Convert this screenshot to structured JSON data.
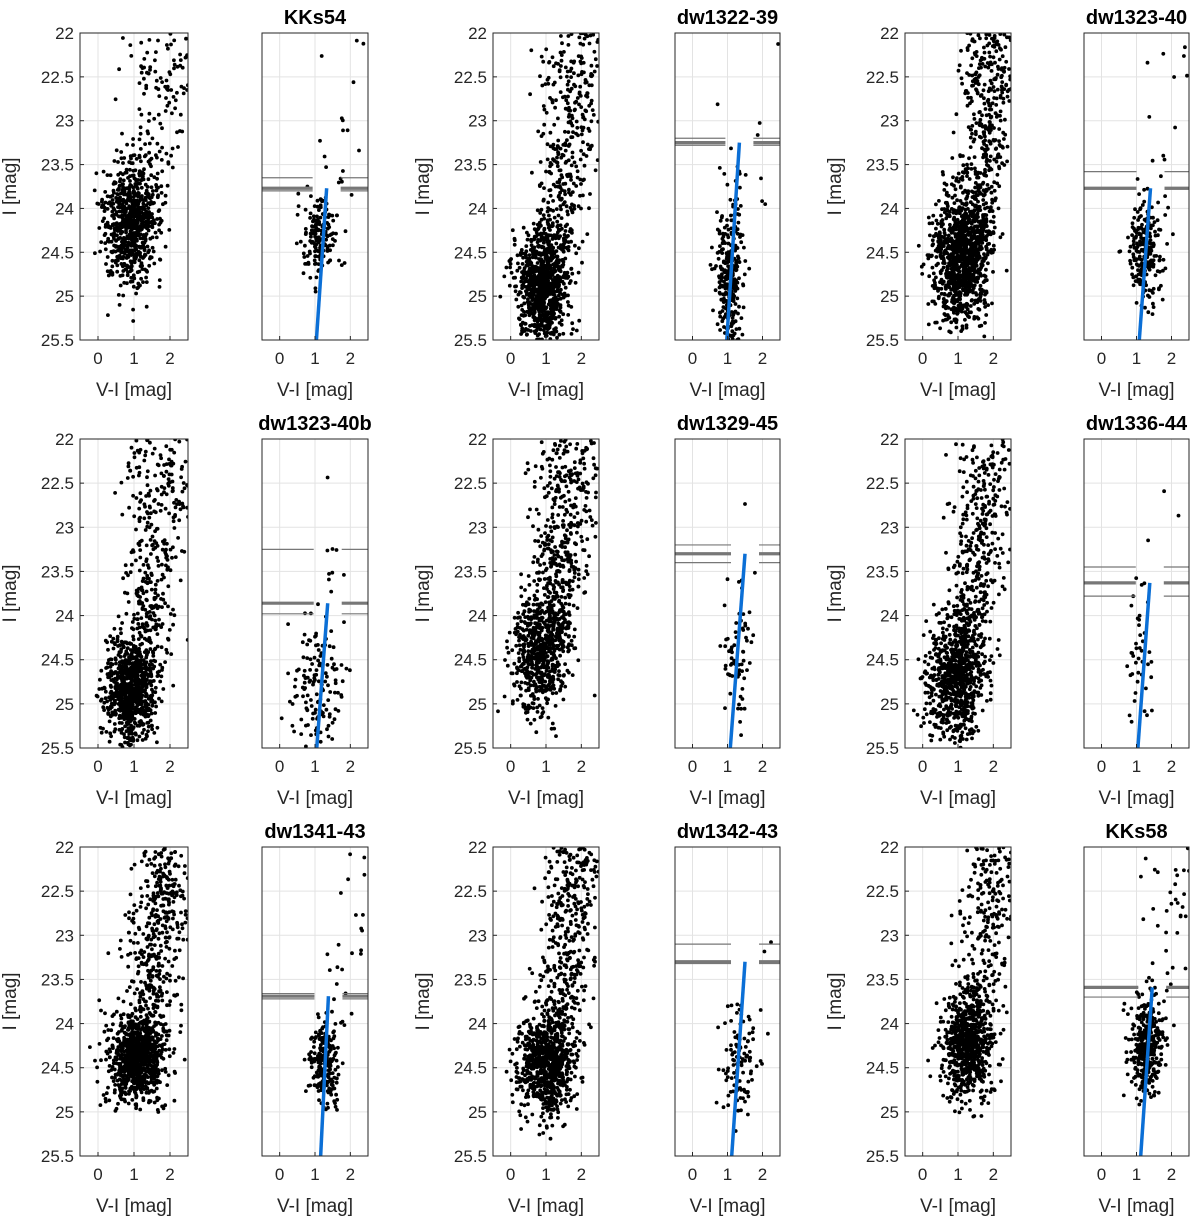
{
  "figure_colors": {
    "points": "#000000",
    "fit_line": "#0b6fd6",
    "trgb_line": "#777777",
    "grid": "#e3e3e3",
    "axis": "#262626"
  },
  "chart_data": [
    {
      "type": "scatter",
      "title": "",
      "galaxy": "KKs54",
      "kind": "full-cmd",
      "xlabel": "V-I [mag]",
      "ylabel": "I [mag]",
      "xlim": [
        -0.5,
        2.5
      ],
      "ylim": [
        22,
        25.5
      ],
      "xticks": [
        "0",
        "1",
        "2"
      ],
      "yticks": [
        "22",
        "22.5",
        "23",
        "23.5",
        "24",
        "24.5",
        "25",
        "25.5"
      ],
      "y_reversed": true,
      "points_approx": 900,
      "seed": 11,
      "dist": {
        "cx": 0.9,
        "cy": 24.2,
        "sx": 0.35,
        "sy": 0.35,
        "tail": 0.22,
        "tailSlope": 1.0
      }
    },
    {
      "type": "scatter",
      "title": "KKs54",
      "galaxy": "KKs54",
      "kind": "selected-rgb",
      "xlabel": "V-I [mag]",
      "ylabel": "",
      "xlim": [
        -0.5,
        2.5
      ],
      "ylim": [
        22,
        25.5
      ],
      "xticks": [
        "0",
        "1",
        "2"
      ],
      "yticks": [],
      "y_reversed": true,
      "points_approx": 180,
      "seed": 12,
      "trgb": 23.77,
      "trgb_err": [
        23.65,
        23.8
      ],
      "fit_line": {
        "x": [
          1.04,
          1.33
        ],
        "y": [
          25.5,
          23.77
        ]
      },
      "dist": {
        "cx": 1.15,
        "cy": 24.3,
        "sx": 0.25,
        "sy": 0.25,
        "tail": 0.1,
        "tailSlope": 0.6
      }
    },
    {
      "type": "scatter",
      "title": "",
      "galaxy": "dw1322-39",
      "kind": "full-cmd",
      "xlabel": "V-I [mag]",
      "ylabel": "I [mag]",
      "xlim": [
        -0.5,
        2.5
      ],
      "ylim": [
        22,
        25.5
      ],
      "xticks": [
        "0",
        "1",
        "2"
      ],
      "yticks": [
        "22",
        "22.5",
        "23",
        "23.5",
        "24",
        "24.5",
        "25",
        "25.5"
      ],
      "y_reversed": true,
      "points_approx": 1300,
      "seed": 21,
      "dist": {
        "cx": 0.9,
        "cy": 24.9,
        "sx": 0.35,
        "sy": 0.35,
        "tail": 0.35,
        "tailSlope": 0.55
      }
    },
    {
      "type": "scatter",
      "title": "dw1322-39",
      "galaxy": "dw1322-39",
      "kind": "selected-rgb",
      "xlabel": "V-I [mag]",
      "ylabel": "",
      "xlim": [
        -0.5,
        2.5
      ],
      "ylim": [
        22,
        25.5
      ],
      "xticks": [
        "0",
        "1",
        "2"
      ],
      "yticks": [],
      "y_reversed": true,
      "points_approx": 330,
      "seed": 22,
      "trgb": 23.25,
      "trgb_err": [
        23.2,
        23.28
      ],
      "fit_line": {
        "x": [
          0.98,
          1.34
        ],
        "y": [
          25.5,
          23.25
        ]
      },
      "dist": {
        "cx": 1.05,
        "cy": 24.8,
        "sx": 0.18,
        "sy": 0.45,
        "tail": 0.05,
        "tailSlope": 0.6
      }
    },
    {
      "type": "scatter",
      "title": "",
      "galaxy": "dw1323-40",
      "kind": "full-cmd",
      "xlabel": "V-I [mag]",
      "ylabel": "I [mag]",
      "xlim": [
        -0.5,
        2.5
      ],
      "ylim": [
        22,
        25.5
      ],
      "xticks": [
        "0",
        "1",
        "2"
      ],
      "yticks": [
        "22",
        "22.5",
        "23",
        "23.5",
        "24",
        "24.5",
        "25",
        "25.5"
      ],
      "y_reversed": true,
      "points_approx": 1500,
      "seed": 31,
      "dist": {
        "cx": 1.1,
        "cy": 24.6,
        "sx": 0.4,
        "sy": 0.35,
        "tail": 0.35,
        "tailSlope": 0.55
      }
    },
    {
      "type": "scatter",
      "title": "dw1323-40",
      "galaxy": "dw1323-40",
      "kind": "selected-rgb",
      "xlabel": "V-I [mag]",
      "ylabel": "",
      "xlim": [
        -0.5,
        2.5
      ],
      "ylim": [
        22,
        25.5
      ],
      "xticks": [
        "0",
        "1",
        "2"
      ],
      "yticks": [],
      "y_reversed": true,
      "points_approx": 240,
      "seed": 32,
      "trgb": 23.77,
      "trgb_err": [
        23.58,
        23.78
      ],
      "fit_line": {
        "x": [
          1.08,
          1.4
        ],
        "y": [
          25.5,
          23.77
        ]
      },
      "dist": {
        "cx": 1.2,
        "cy": 24.5,
        "sx": 0.25,
        "sy": 0.3,
        "tail": 0.08,
        "tailSlope": 0.6
      }
    },
    {
      "type": "scatter",
      "title": "",
      "galaxy": "dw1323-40b",
      "kind": "full-cmd",
      "xlabel": "V-I [mag]",
      "ylabel": "I [mag]",
      "xlim": [
        -0.5,
        2.5
      ],
      "ylim": [
        22,
        25.5
      ],
      "xticks": [
        "0",
        "1",
        "2"
      ],
      "yticks": [
        "22",
        "22.5",
        "23",
        "23.5",
        "24",
        "24.5",
        "25",
        "25.5"
      ],
      "y_reversed": true,
      "points_approx": 1200,
      "seed": 41,
      "dist": {
        "cx": 0.9,
        "cy": 24.85,
        "sx": 0.35,
        "sy": 0.3,
        "tail": 0.35,
        "tailSlope": 0.55
      }
    },
    {
      "type": "scatter",
      "title": "dw1323-40b",
      "galaxy": "dw1323-40b",
      "kind": "selected-rgb",
      "xlabel": "V-I [mag]",
      "ylabel": "",
      "xlim": [
        -0.5,
        2.5
      ],
      "ylim": [
        22,
        25.5
      ],
      "xticks": [
        "0",
        "1",
        "2"
      ],
      "yticks": [],
      "y_reversed": true,
      "points_approx": 150,
      "seed": 42,
      "trgb": 23.86,
      "trgb_err": [
        23.25,
        23.98
      ],
      "fit_line": {
        "x": [
          1.05,
          1.36
        ],
        "y": [
          25.5,
          23.86
        ]
      },
      "dist": {
        "cx": 1.0,
        "cy": 24.8,
        "sx": 0.4,
        "sy": 0.4,
        "tail": 0.1,
        "tailSlope": 0.6
      }
    },
    {
      "type": "scatter",
      "title": "",
      "galaxy": "dw1329-45",
      "kind": "full-cmd",
      "xlabel": "V-I [mag]",
      "ylabel": "I [mag]",
      "xlim": [
        -0.5,
        2.5
      ],
      "ylim": [
        22,
        25.5
      ],
      "xticks": [
        "0",
        "1",
        "2"
      ],
      "yticks": [
        "22",
        "22.5",
        "23",
        "23.5",
        "24",
        "24.5",
        "25",
        "25.5"
      ],
      "y_reversed": true,
      "points_approx": 1100,
      "seed": 51,
      "dist": {
        "cx": 0.85,
        "cy": 24.4,
        "sx": 0.4,
        "sy": 0.35,
        "tail": 0.45,
        "tailSlope": 0.55
      }
    },
    {
      "type": "scatter",
      "title": "dw1329-45",
      "galaxy": "dw1329-45",
      "kind": "selected-rgb",
      "xlabel": "V-I [mag]",
      "ylabel": "",
      "xlim": [
        -0.5,
        2.5
      ],
      "ylim": [
        22,
        25.5
      ],
      "xticks": [
        "0",
        "1",
        "2"
      ],
      "yticks": [],
      "y_reversed": true,
      "points_approx": 70,
      "seed": 52,
      "trgb": 23.3,
      "trgb_err": [
        23.2,
        23.4
      ],
      "fit_line": {
        "x": [
          1.08,
          1.5
        ],
        "y": [
          25.5,
          23.3
        ]
      },
      "dist": {
        "cx": 1.3,
        "cy": 24.4,
        "sx": 0.2,
        "sy": 0.4,
        "tail": 0.05,
        "tailSlope": 0.6
      }
    },
    {
      "type": "scatter",
      "title": "",
      "galaxy": "dw1336-44",
      "kind": "full-cmd",
      "xlabel": "V-I [mag]",
      "ylabel": "I [mag]",
      "xlim": [
        -0.5,
        2.5
      ],
      "ylim": [
        22,
        25.5
      ],
      "xticks": [
        "0",
        "1",
        "2"
      ],
      "yticks": [
        "22",
        "22.5",
        "23",
        "23.5",
        "24",
        "24.5",
        "25",
        "25.5"
      ],
      "y_reversed": true,
      "points_approx": 1200,
      "seed": 61,
      "dist": {
        "cx": 0.9,
        "cy": 24.75,
        "sx": 0.4,
        "sy": 0.35,
        "tail": 0.4,
        "tailSlope": 0.5
      }
    },
    {
      "type": "scatter",
      "title": "dw1336-44",
      "galaxy": "dw1336-44",
      "kind": "selected-rgb",
      "xlabel": "V-I [mag]",
      "ylabel": "",
      "xlim": [
        -0.5,
        2.5
      ],
      "ylim": [
        22,
        25.5
      ],
      "xticks": [
        "0",
        "1",
        "2"
      ],
      "yticks": [],
      "y_reversed": true,
      "points_approx": 45,
      "seed": 62,
      "trgb": 23.63,
      "trgb_err": [
        23.45,
        23.78
      ],
      "fit_line": {
        "x": [
          1.04,
          1.38
        ],
        "y": [
          25.5,
          23.63
        ]
      },
      "dist": {
        "cx": 1.1,
        "cy": 24.5,
        "sx": 0.15,
        "sy": 0.4,
        "tail": 0.1,
        "tailSlope": 0.6
      }
    },
    {
      "type": "scatter",
      "title": "",
      "galaxy": "dw1341-43",
      "kind": "full-cmd",
      "xlabel": "V-I [mag]",
      "ylabel": "I [mag]",
      "xlim": [
        -0.5,
        2.5
      ],
      "ylim": [
        22,
        25.5
      ],
      "xticks": [
        "0",
        "1",
        "2"
      ],
      "yticks": [
        "22",
        "22.5",
        "23",
        "23.5",
        "24",
        "24.5",
        "25",
        "25.5"
      ],
      "y_reversed": true,
      "points_approx": 1300,
      "seed": 71,
      "dist": {
        "cx": 1.05,
        "cy": 24.4,
        "sx": 0.4,
        "sy": 0.25,
        "tail": 0.4,
        "tailSlope": 0.55
      }
    },
    {
      "type": "scatter",
      "title": "dw1341-43",
      "galaxy": "dw1341-43",
      "kind": "selected-rgb",
      "xlabel": "V-I [mag]",
      "ylabel": "",
      "xlim": [
        -0.5,
        2.5
      ],
      "ylim": [
        22,
        25.5
      ],
      "xticks": [
        "0",
        "1",
        "2"
      ],
      "yticks": [],
      "y_reversed": true,
      "points_approx": 260,
      "seed": 72,
      "trgb": 23.69,
      "trgb_err": [
        23.66,
        23.72
      ],
      "fit_line": {
        "x": [
          1.16,
          1.38
        ],
        "y": [
          25.5,
          23.69
        ]
      },
      "dist": {
        "cx": 1.25,
        "cy": 24.45,
        "sx": 0.2,
        "sy": 0.22,
        "tail": 0.1,
        "tailSlope": 0.6
      }
    },
    {
      "type": "scatter",
      "title": "",
      "galaxy": "dw1342-43",
      "kind": "full-cmd",
      "xlabel": "V-I [mag]",
      "ylabel": "I [mag]",
      "xlim": [
        -0.5,
        2.5
      ],
      "ylim": [
        22,
        25.5
      ],
      "xticks": [
        "0",
        "1",
        "2"
      ],
      "yticks": [
        "22",
        "22.5",
        "23",
        "23.5",
        "24",
        "24.5",
        "25",
        "25.5"
      ],
      "y_reversed": true,
      "points_approx": 1200,
      "seed": 81,
      "dist": {
        "cx": 1.0,
        "cy": 24.5,
        "sx": 0.4,
        "sy": 0.28,
        "tail": 0.4,
        "tailSlope": 0.55
      }
    },
    {
      "type": "scatter",
      "title": "dw1342-43",
      "galaxy": "dw1342-43",
      "kind": "selected-rgb",
      "xlabel": "V-I [mag]",
      "ylabel": "",
      "xlim": [
        -0.5,
        2.5
      ],
      "ylim": [
        22,
        25.5
      ],
      "xticks": [
        "0",
        "1",
        "2"
      ],
      "yticks": [],
      "y_reversed": true,
      "points_approx": 110,
      "seed": 82,
      "trgb": 23.3,
      "trgb_err": [
        23.1,
        23.32
      ],
      "fit_line": {
        "x": [
          1.12,
          1.5
        ],
        "y": [
          25.5,
          23.3
        ]
      },
      "dist": {
        "cx": 1.35,
        "cy": 24.4,
        "sx": 0.25,
        "sy": 0.3,
        "tail": 0.05,
        "tailSlope": 0.6
      }
    },
    {
      "type": "scatter",
      "title": "",
      "galaxy": "KKs58",
      "kind": "full-cmd",
      "xlabel": "V-I [mag]",
      "ylabel": "I [mag]",
      "xlim": [
        -0.5,
        2.5
      ],
      "ylim": [
        22,
        25.5
      ],
      "xticks": [
        "0",
        "1",
        "2"
      ],
      "yticks": [
        "22",
        "22.5",
        "23",
        "23.5",
        "24",
        "24.5",
        "25",
        "25.5"
      ],
      "y_reversed": true,
      "points_approx": 1000,
      "seed": 91,
      "dist": {
        "cx": 1.25,
        "cy": 24.25,
        "sx": 0.35,
        "sy": 0.3,
        "tail": 0.3,
        "tailSlope": 0.55
      }
    },
    {
      "type": "scatter",
      "title": "KKs58",
      "galaxy": "KKs58",
      "kind": "selected-rgb",
      "xlabel": "V-I [mag]",
      "ylabel": "",
      "xlim": [
        -0.5,
        2.5
      ],
      "ylim": [
        22,
        25.5
      ],
      "xticks": [
        "0",
        "1",
        "2"
      ],
      "yticks": [],
      "y_reversed": true,
      "points_approx": 420,
      "seed": 92,
      "trgb": 23.59,
      "trgb_err": [
        23.59,
        23.7
      ],
      "fit_line": {
        "x": [
          1.12,
          1.45
        ],
        "y": [
          25.5,
          23.59
        ]
      },
      "dist": {
        "cx": 1.3,
        "cy": 24.25,
        "sx": 0.22,
        "sy": 0.25,
        "tail": 0.12,
        "tailSlope": 0.6
      }
    }
  ]
}
